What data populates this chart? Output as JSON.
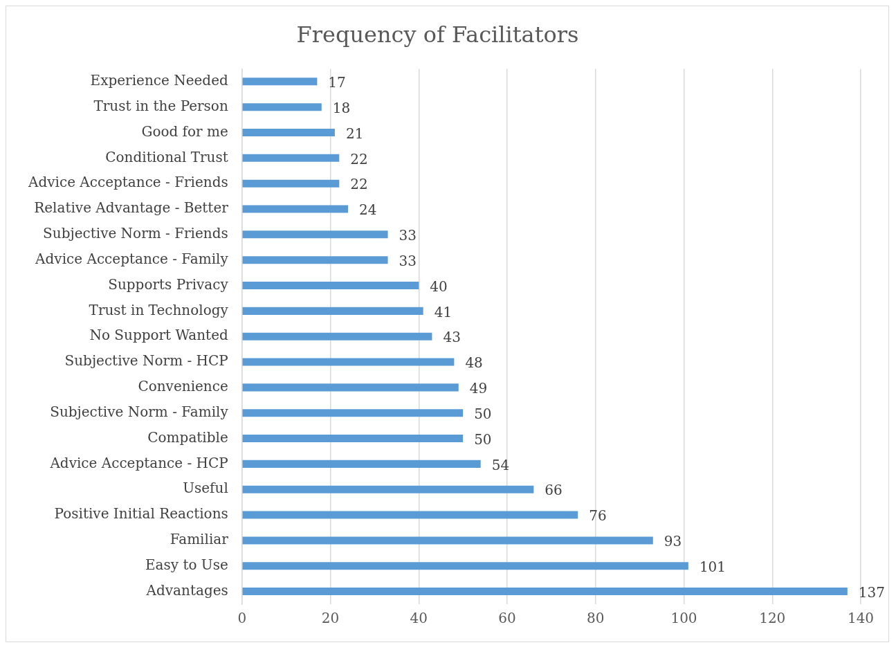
{
  "chart_data": {
    "type": "bar",
    "orientation": "horizontal",
    "title": "Frequency of Facilitators",
    "categories": [
      "Experience Needed",
      "Trust in the Person",
      "Good for me",
      "Conditional Trust",
      "Advice Acceptance - Friends",
      "Relative Advantage - Better",
      "Subjective Norm - Friends",
      "Advice Acceptance - Family",
      "Supports Privacy",
      "Trust in Technology",
      "No Support Wanted",
      "Subjective Norm - HCP",
      "Convenience",
      "Subjective Norm - Family",
      "Compatible",
      "Advice Acceptance - HCP",
      "Useful",
      "Positive Initial Reactions",
      "Familiar",
      "Easy to Use",
      "Advantages"
    ],
    "values": [
      17,
      18,
      21,
      22,
      22,
      24,
      33,
      33,
      40,
      41,
      43,
      48,
      49,
      50,
      50,
      54,
      66,
      76,
      93,
      101,
      137
    ],
    "color": "#5b9bd5",
    "xlim": [
      0,
      140
    ],
    "xticks": [
      0,
      20,
      40,
      60,
      80,
      100,
      120,
      140
    ],
    "grid": "x",
    "data_labels": true
  }
}
